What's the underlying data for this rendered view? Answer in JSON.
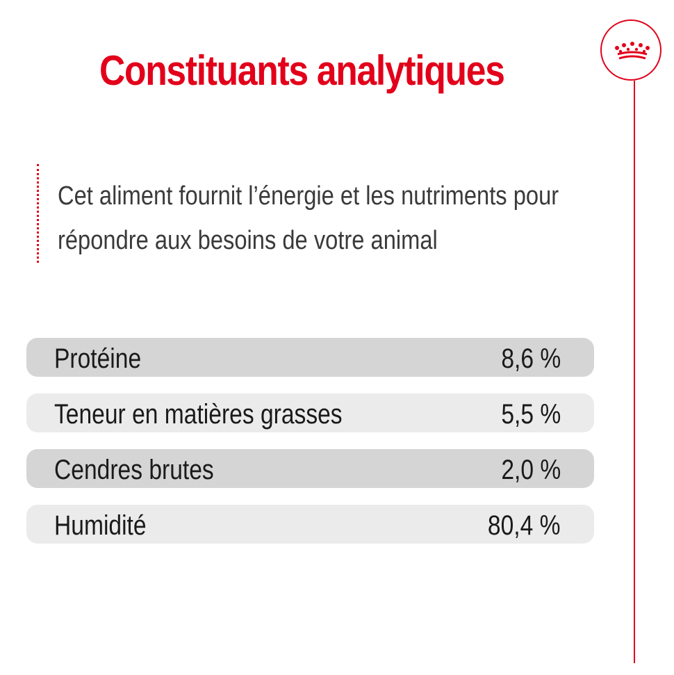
{
  "title": "Constituants analytiques",
  "intro": {
    "line1": "Cet aliment fournit l’énergie et les nutriments pour",
    "line2": "répondre aux besoins de votre animal"
  },
  "nutrients": [
    {
      "label": "Protéine",
      "value": "8,6 %"
    },
    {
      "label": "Teneur en matières grasses",
      "value": "5,5 %"
    },
    {
      "label": "Cendres brutes",
      "value": "2,0 %"
    },
    {
      "label": "Humidité",
      "value": "80,4 %"
    }
  ],
  "logo": {
    "icon": "crown-icon"
  },
  "colors": {
    "accent": "#e2001a",
    "row_dark": "#d5d5d5",
    "row_light": "#ebebeb",
    "text": "#1a1a1a"
  }
}
